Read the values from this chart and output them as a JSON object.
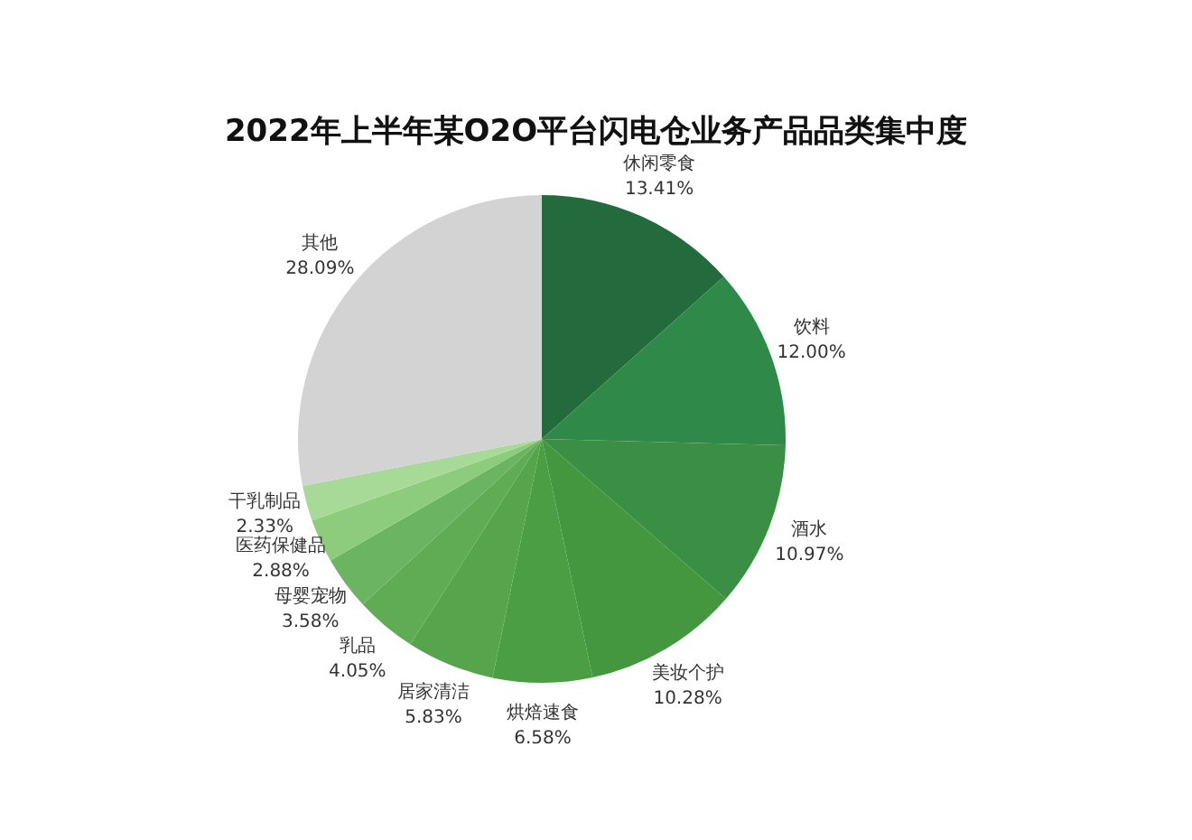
{
  "chart_data": {
    "type": "pie",
    "title": "2022年上半年某O2O平台闪电仓业务产品品类集中度",
    "categories": [
      "休闲零食",
      "饮料",
      "酒水",
      "美妆个护",
      "烘焙速食",
      "居家清洁",
      "乳品",
      "母婴宠物",
      "医药保健品",
      "干乳制品",
      "其他"
    ],
    "values": [
      13.41,
      12.0,
      10.97,
      10.28,
      6.58,
      5.83,
      4.05,
      3.58,
      2.88,
      2.33,
      28.09
    ],
    "value_labels": [
      "13.41%",
      "12.00%",
      "10.97%",
      "10.28%",
      "6.58%",
      "5.83%",
      "4.05%",
      "3.58%",
      "2.88%",
      "2.33%",
      "28.09%"
    ],
    "colors": [
      "#236b3d",
      "#2f8a4a",
      "#3b8f45",
      "#44963f",
      "#4c9e45",
      "#56a54d",
      "#5fac55",
      "#6bb462",
      "#8ccc7c",
      "#a6da96",
      "#d3d3d3"
    ],
    "legend": false
  }
}
